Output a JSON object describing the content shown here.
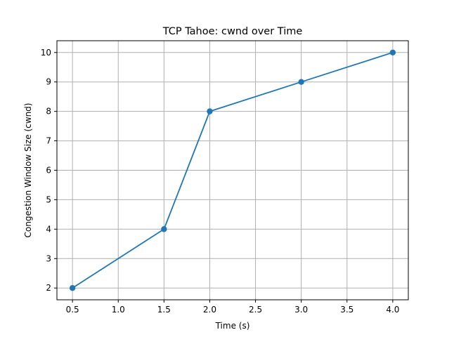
{
  "chart_data": {
    "type": "line",
    "title": "TCP Tahoe: cwnd over Time",
    "xlabel": "Time (s)",
    "ylabel": "Congestion Window Size (cwnd)",
    "xlim": [
      0.33,
      4.17
    ],
    "ylim": [
      1.6,
      10.4
    ],
    "x_ticks": [
      0.5,
      1.0,
      1.5,
      2.0,
      2.5,
      3.0,
      3.5,
      4.0
    ],
    "x_tick_labels": [
      "0.5",
      "1.0",
      "1.5",
      "2.0",
      "2.5",
      "3.0",
      "3.5",
      "4.0"
    ],
    "y_ticks": [
      2,
      3,
      4,
      5,
      6,
      7,
      8,
      9,
      10
    ],
    "y_tick_labels": [
      "2",
      "3",
      "4",
      "5",
      "6",
      "7",
      "8",
      "9",
      "10"
    ],
    "grid": true,
    "series": [
      {
        "color": "#1f77b4",
        "marker": "circle",
        "x": [
          0.5,
          1.5,
          2.0,
          3.0,
          4.0
        ],
        "y": [
          2,
          4,
          8,
          9,
          10
        ]
      }
    ]
  }
}
